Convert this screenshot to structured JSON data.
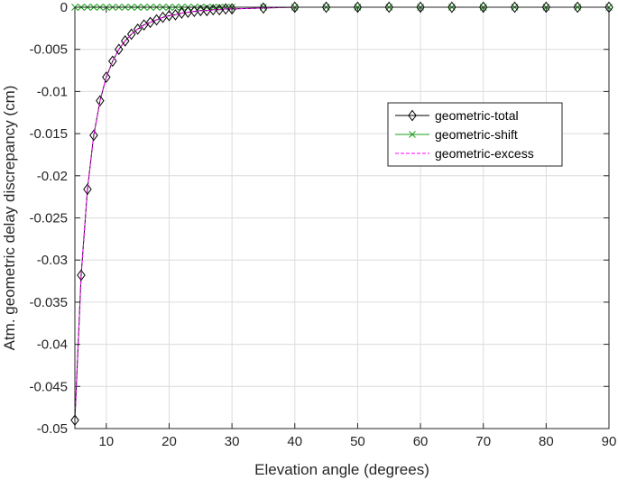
{
  "chart_data": {
    "type": "line",
    "xlabel": "Elevation angle (degrees)",
    "ylabel": "Atm. geometric delay discrepancy (cm)",
    "xlim": [
      5,
      90
    ],
    "ylim": [
      -0.05,
      0
    ],
    "xticks": [
      10,
      20,
      30,
      40,
      50,
      60,
      70,
      80,
      90
    ],
    "xtick_labels": [
      "10",
      "20",
      "30",
      "40",
      "50",
      "60",
      "70",
      "80",
      "90"
    ],
    "yticks": [
      -0.05,
      -0.045,
      -0.04,
      -0.035,
      -0.03,
      -0.025,
      -0.02,
      -0.015,
      -0.01,
      -0.005,
      0
    ],
    "ytick_labels": [
      "-0.05",
      "-0.045",
      "-0.04",
      "-0.035",
      "-0.03",
      "-0.025",
      "-0.02",
      "-0.015",
      "-0.01",
      "-0.005",
      "0"
    ],
    "grid": true,
    "legend_position": "center-right",
    "x": [
      5,
      6,
      7,
      8,
      9,
      10,
      11,
      12,
      13,
      14,
      15,
      16,
      17,
      18,
      19,
      20,
      21,
      22,
      23,
      24,
      25,
      26,
      27,
      28,
      29,
      30,
      35,
      40,
      45,
      50,
      55,
      60,
      65,
      70,
      75,
      80,
      85,
      90
    ],
    "series": [
      {
        "name": "geometric-total",
        "color": "#000000",
        "marker": "diamond",
        "line_style": "solid",
        "values": [
          -0.049,
          -0.0318,
          -0.0216,
          -0.0152,
          -0.0111,
          -0.0083,
          -0.0064,
          -0.005,
          -0.004,
          -0.0032,
          -0.0026,
          -0.0021,
          -0.0018,
          -0.0015,
          -0.0012,
          -0.001,
          -0.0009,
          -0.0007,
          -0.0006,
          -0.0005,
          -0.0004,
          -0.0004,
          -0.0003,
          -0.0003,
          -0.0002,
          -0.0002,
          -0.0001,
          0,
          0,
          0,
          0,
          0,
          0,
          0,
          0,
          0,
          0,
          0
        ]
      },
      {
        "name": "geometric-shift",
        "color": "#1a9e1a",
        "marker": "x",
        "line_style": "solid",
        "values": [
          0,
          0,
          0,
          0,
          0,
          0,
          0,
          0,
          0,
          0,
          0,
          0,
          0,
          0,
          0,
          0,
          0,
          0,
          0,
          0,
          0,
          0,
          0,
          0,
          0,
          0,
          0,
          0,
          0,
          0,
          0,
          0,
          0,
          0,
          0,
          0,
          0,
          0
        ]
      },
      {
        "name": "geometric-excess",
        "color": "#ff00ff",
        "marker": "none",
        "line_style": "dashed",
        "values": [
          -0.049,
          -0.0318,
          -0.0216,
          -0.0152,
          -0.0111,
          -0.0083,
          -0.0064,
          -0.005,
          -0.004,
          -0.0032,
          -0.0026,
          -0.0021,
          -0.0018,
          -0.0015,
          -0.0012,
          -0.001,
          -0.0009,
          -0.0007,
          -0.0006,
          -0.0005,
          -0.0004,
          -0.0004,
          -0.0003,
          -0.0003,
          -0.0002,
          -0.0002,
          -0.0001,
          0,
          0,
          0,
          0,
          0,
          0,
          0,
          0,
          0,
          0,
          0
        ]
      }
    ]
  }
}
